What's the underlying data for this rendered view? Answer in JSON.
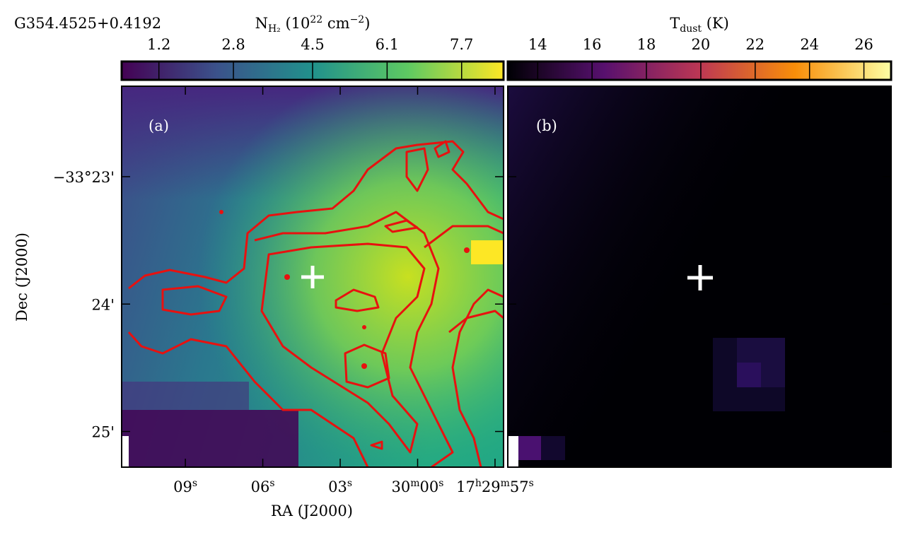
{
  "figure": {
    "title": "G354.4525+0.4192",
    "panels": [
      {
        "label": "(a)",
        "colorbar": {
          "cmap": "viridis",
          "label": [
            {
              "text": "N"
            },
            {
              "text": "H₂",
              "style": "sub"
            },
            {
              "text": " (10"
            },
            {
              "text": "22",
              "style": "sup"
            },
            {
              "text": " cm"
            },
            {
              "text": "−2",
              "style": "sup"
            },
            {
              "text": ")"
            }
          ],
          "lim": [
            0.4,
            8.6
          ],
          "ticks": [
            1.2,
            2.8,
            4.5,
            6.1,
            7.7
          ]
        }
      },
      {
        "label": "(b)",
        "colorbar": {
          "cmap": "inferno",
          "label": [
            {
              "text": "T"
            },
            {
              "text": "dust",
              "style": "sub"
            },
            {
              "text": " (K)"
            }
          ],
          "lim": [
            12.9,
            27.0
          ],
          "ticks": [
            14,
            16,
            18,
            20,
            22,
            24,
            26
          ]
        }
      }
    ],
    "axes": {
      "xlabel": "RA (J2000)",
      "ylabel": "Dec (J2000)",
      "xlim": [
        11.47,
        -3.33
      ],
      "xticks": [
        {
          "value": 9,
          "label": [
            {
              "text": "09"
            },
            {
              "text": "s",
              "style": "sup"
            }
          ]
        },
        {
          "value": 6,
          "label": [
            {
              "text": "06"
            },
            {
              "text": "s",
              "style": "sup"
            }
          ]
        },
        {
          "value": 3,
          "label": [
            {
              "text": "03"
            },
            {
              "text": "s",
              "style": "sup"
            }
          ]
        },
        {
          "value": 0,
          "label": [
            {
              "text": "30"
            },
            {
              "text": "m",
              "style": "sup"
            },
            {
              "text": "00"
            },
            {
              "text": "s",
              "style": "sup"
            }
          ]
        },
        {
          "value": -3,
          "label": [
            {
              "text": "17"
            },
            {
              "text": "h",
              "style": "sup"
            },
            {
              "text": "29"
            },
            {
              "text": "m",
              "style": "sup"
            },
            {
              "text": "57"
            },
            {
              "text": "s",
              "style": "sup"
            }
          ]
        }
      ],
      "ylim": [
        22.29,
        25.28
      ],
      "yticks": [
        {
          "value": 23,
          "label": "−33°23'"
        },
        {
          "value": 24,
          "label": "24'"
        },
        {
          "value": 25,
          "label": "25'"
        }
      ]
    }
  }
}
